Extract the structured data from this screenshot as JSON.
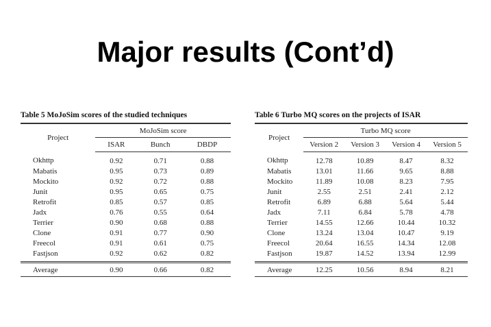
{
  "title": "Major results (Cont’d)",
  "tables": [
    {
      "caption": "Table 5  MoJoSim scores of the studied techniques",
      "first_header": "Project",
      "group_header": "MoJoSim score",
      "columns": [
        "ISAR",
        "Bunch",
        "DBDP"
      ],
      "rows": [
        [
          "Okhttp",
          "0.92",
          "0.71",
          "0.88"
        ],
        [
          "Mabatis",
          "0.95",
          "0.73",
          "0.89"
        ],
        [
          "Mockito",
          "0.92",
          "0.72",
          "0.88"
        ],
        [
          "Junit",
          "0.95",
          "0.65",
          "0.75"
        ],
        [
          "Retrofit",
          "0.85",
          "0.57",
          "0.85"
        ],
        [
          "Jadx",
          "0.76",
          "0.55",
          "0.64"
        ],
        [
          "Terrier",
          "0.90",
          "0.68",
          "0.88"
        ],
        [
          "Clone",
          "0.91",
          "0.77",
          "0.90"
        ],
        [
          "Freecol",
          "0.91",
          "0.61",
          "0.75"
        ],
        [
          "Fastjson",
          "0.92",
          "0.62",
          "0.82"
        ]
      ],
      "average": [
        "Average",
        "0.90",
        "0.66",
        "0.82"
      ]
    },
    {
      "caption": "Table 6  Turbo MQ scores on the projects of ISAR",
      "first_header": "Project",
      "group_header": "Turbo MQ score",
      "columns": [
        "Version 2",
        "Version 3",
        "Version 4",
        "Version 5"
      ],
      "rows": [
        [
          "Okhttp",
          "12.78",
          "10.89",
          "8.47",
          "8.32"
        ],
        [
          "Mabatis",
          "13.01",
          "11.66",
          "9.65",
          "8.88"
        ],
        [
          "Mockito",
          "11.89",
          "10.08",
          "8.23",
          "7.95"
        ],
        [
          "Junit",
          "2.55",
          "2.51",
          "2.41",
          "2.12"
        ],
        [
          "Retrofit",
          "6.89",
          "6.88",
          "5.64",
          "5.44"
        ],
        [
          "Jadx",
          "7.11",
          "6.84",
          "5.78",
          "4.78"
        ],
        [
          "Terrier",
          "14.55",
          "12.66",
          "10.44",
          "10.32"
        ],
        [
          "Clone",
          "13.24",
          "13.04",
          "10.47",
          "9.19"
        ],
        [
          "Freecol",
          "20.64",
          "16.55",
          "14.34",
          "12.08"
        ],
        [
          "Fastjson",
          "19.87",
          "14.52",
          "13.94",
          "12.99"
        ]
      ],
      "average": [
        "Average",
        "12.25",
        "10.56",
        "8.94",
        "8.21"
      ]
    }
  ]
}
